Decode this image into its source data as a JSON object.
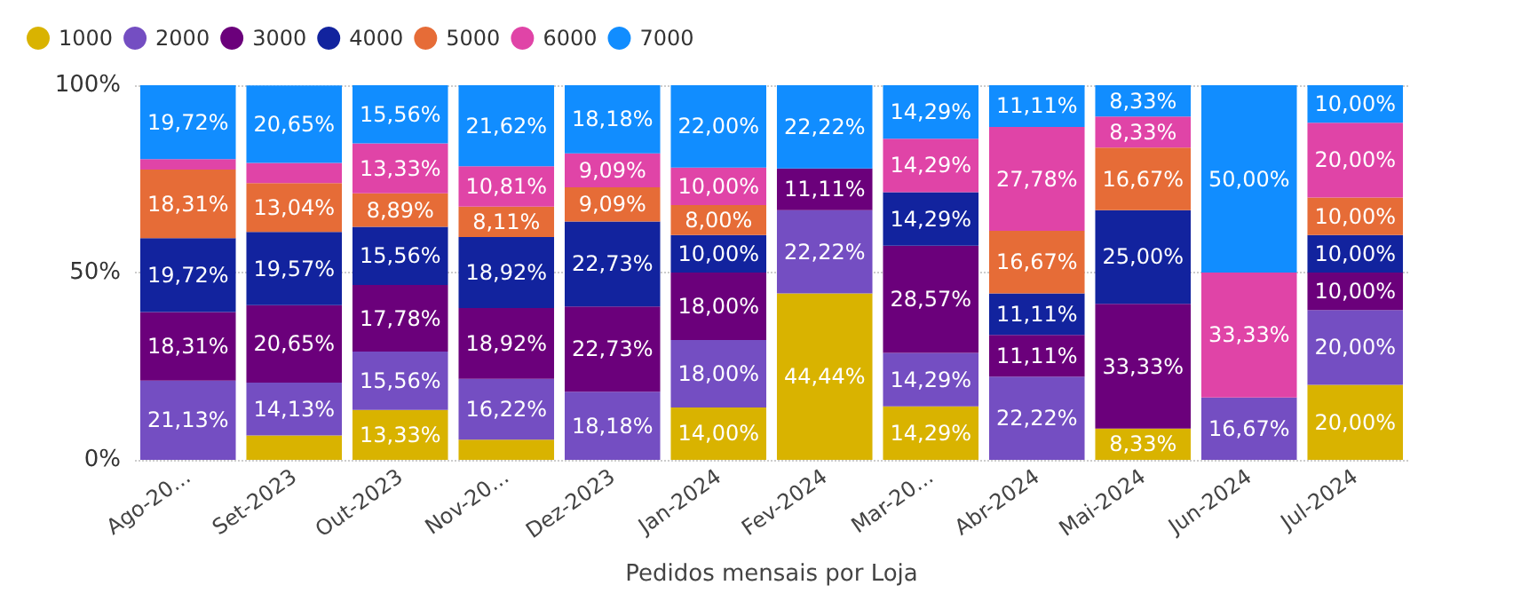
{
  "chart_data": {
    "type": "bar",
    "stacked": true,
    "xlabel": "Pedidos mensais por Loja",
    "categories": [
      "Ago-20...",
      "Set-2023",
      "Out-2023",
      "Nov-20...",
      "Dez-2023",
      "Jan-2024",
      "Fev-2024",
      "Mar-20...",
      "Abr-2024",
      "Mai-2024",
      "Jun-2024",
      "Jul-2024"
    ],
    "ylim": [
      0,
      100
    ],
    "yticks": [
      {
        "value": 0,
        "label": "0%"
      },
      {
        "value": 50,
        "label": "50%"
      },
      {
        "value": 100,
        "label": "100%"
      }
    ],
    "grid": "y",
    "legend": "top left",
    "series": [
      {
        "name": "1000",
        "color": "#d9b300",
        "values": [
          null,
          6.5,
          13.33,
          5.4,
          null,
          14,
          44.44,
          14.29,
          null,
          8.33,
          null,
          20
        ],
        "value_labels": [
          null,
          null,
          "13,33%",
          null,
          null,
          "14,00%",
          "44,44%",
          "14,29%",
          null,
          "8,33%",
          null,
          "20,00%"
        ]
      },
      {
        "name": "2000",
        "color": "#744ec2",
        "values": [
          21.13,
          14.13,
          15.56,
          16.22,
          18.18,
          18,
          22.22,
          14.29,
          22.22,
          null,
          16.67,
          20
        ],
        "value_labels": [
          "21,13%",
          "14,13%",
          "15,56%",
          "16,22%",
          "18,18%",
          "18,00%",
          "22,22%",
          "14,29%",
          "22,22%",
          null,
          "16,67%",
          "20,00%"
        ]
      },
      {
        "name": "3000",
        "color": "#6b007b",
        "values": [
          18.31,
          20.65,
          17.78,
          18.92,
          22.73,
          18,
          11.11,
          28.57,
          11.11,
          33.33,
          null,
          10
        ],
        "value_labels": [
          "18,31%",
          "20,65%",
          "17,78%",
          "18,92%",
          "22,73%",
          "18,00%",
          "11,11%",
          "28,57%",
          "11,11%",
          "33,33%",
          null,
          "10,00%"
        ]
      },
      {
        "name": "4000",
        "color": "#12239e",
        "values": [
          19.72,
          19.57,
          15.56,
          18.92,
          22.73,
          10,
          null,
          14.29,
          11.11,
          25,
          null,
          10
        ],
        "value_labels": [
          "19,72%",
          "19,57%",
          "15,56%",
          "18,92%",
          "22,73%",
          "10,00%",
          null,
          "14,29%",
          "11,11%",
          "25,00%",
          null,
          "10,00%"
        ]
      },
      {
        "name": "5000",
        "color": "#e66c37",
        "values": [
          18.31,
          13.04,
          8.89,
          8.11,
          9.09,
          8,
          null,
          null,
          16.67,
          16.67,
          null,
          10
        ],
        "value_labels": [
          "18,31%",
          "13,04%",
          "8,89%",
          "8,11%",
          "9,09%",
          "8,00%",
          null,
          null,
          "16,67%",
          "16,67%",
          null,
          "10,00%"
        ]
      },
      {
        "name": "6000",
        "color": "#e044a7",
        "values": [
          2.8,
          5.4,
          13.33,
          10.81,
          9.09,
          10,
          null,
          14.29,
          27.78,
          8.33,
          33.33,
          20
        ],
        "value_labels": [
          null,
          null,
          "13,33%",
          "10,81%",
          "9,09%",
          "10,00%",
          null,
          "14,29%",
          "27,78%",
          "8,33%",
          "33,33%",
          "20,00%"
        ]
      },
      {
        "name": "7000",
        "color": "#118dff",
        "values": [
          19.72,
          20.65,
          15.56,
          21.62,
          18.18,
          22,
          22.22,
          14.29,
          11.11,
          8.33,
          50,
          10
        ],
        "value_labels": [
          "19,72%",
          "20,65%",
          "15,56%",
          "21,62%",
          "18,18%",
          "22,00%",
          "22,22%",
          "14,29%",
          "11,11%",
          "8,33%",
          "50,00%",
          "10,00%"
        ]
      }
    ]
  }
}
